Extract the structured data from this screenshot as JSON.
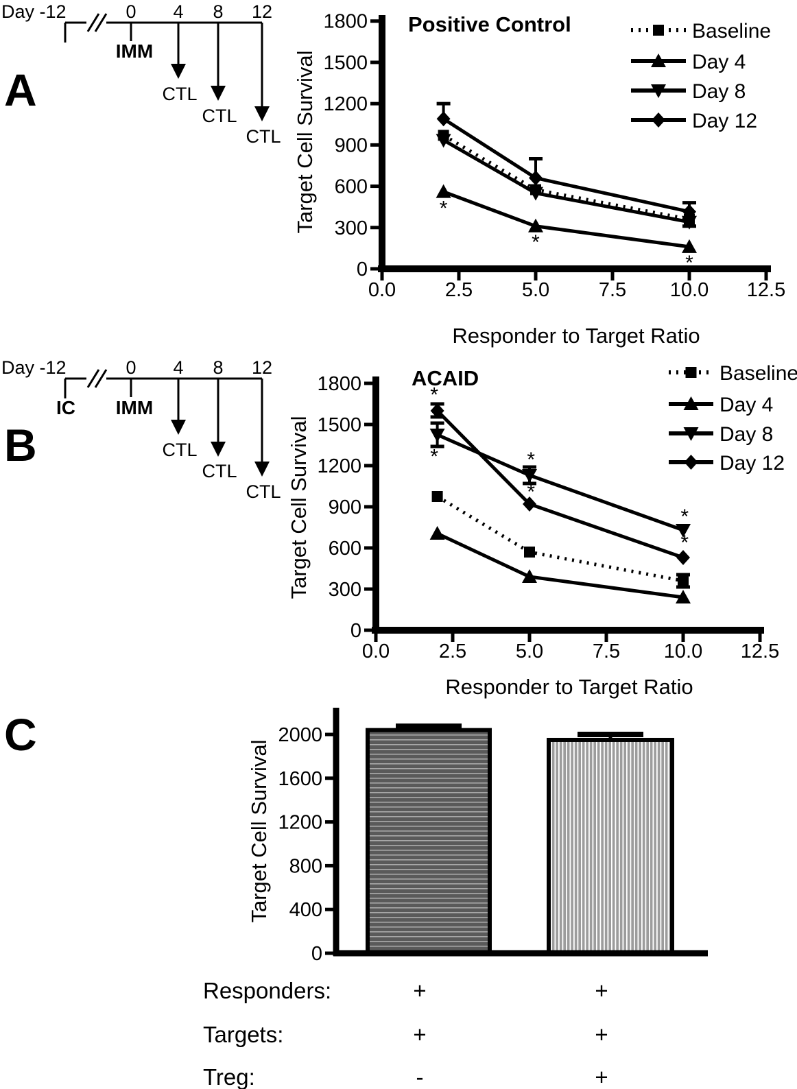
{
  "panels": {
    "a": {
      "label": "A"
    },
    "b": {
      "label": "B"
    },
    "c": {
      "label": "C"
    }
  },
  "timelines": {
    "a": {
      "start_label": "Day -12",
      "break_symbol": "//",
      "tick_labels": [
        "0",
        "4",
        "8",
        "12"
      ],
      "origin_event": "IMM",
      "start_event": "",
      "arrow_event": "CTL"
    },
    "b": {
      "start_label": "Day -12",
      "break_symbol": "//",
      "tick_labels": [
        "0",
        "4",
        "8",
        "12"
      ],
      "origin_event": "IMM",
      "start_event": "IC",
      "arrow_event": "CTL"
    }
  },
  "chart_data": [
    {
      "id": "positive-control",
      "type": "line",
      "title": "Positive Control",
      "xlabel": "Responder to Target Ratio",
      "ylabel": "Target Cell Survival",
      "xlim": [
        0,
        12.5
      ],
      "ylim": [
        0,
        1800
      ],
      "xtick_values": [
        0,
        2.5,
        5,
        7.5,
        10,
        12.5
      ],
      "xtick_labels": [
        "0.0",
        "2.5",
        "5.0",
        "7.5",
        "10.0",
        "12.5"
      ],
      "yticks": [
        0,
        300,
        600,
        900,
        1200,
        1500,
        1800
      ],
      "x": [
        2,
        5,
        10
      ],
      "sig_symbol": "*",
      "legend_position": "top-right",
      "series": [
        {
          "name": "Baseline",
          "marker": "square",
          "line": "dotted",
          "values": [
            970,
            575,
            360
          ],
          "err_up": [
            0,
            0,
            0
          ],
          "err_down": [
            0,
            0,
            50
          ]
        },
        {
          "name": "Day 4",
          "marker": "triangle-up",
          "line": "solid",
          "values": [
            560,
            310,
            160
          ],
          "err_up": [
            0,
            0,
            0
          ],
          "err_down": [
            0,
            0,
            0
          ]
        },
        {
          "name": "Day 8",
          "marker": "triangle-down",
          "line": "solid",
          "values": [
            935,
            550,
            340
          ],
          "err_up": [
            0,
            0,
            0
          ],
          "err_down": [
            0,
            0,
            0
          ]
        },
        {
          "name": "Day 12",
          "marker": "diamond",
          "line": "solid",
          "values": [
            1090,
            660,
            415
          ],
          "err_up": [
            110,
            140,
            65
          ],
          "err_down": [
            0,
            0,
            0
          ]
        }
      ],
      "sig_marks": [
        {
          "x": 2,
          "y": 445
        },
        {
          "x": 5,
          "y": 200
        },
        {
          "x": 10,
          "y": 50
        }
      ]
    },
    {
      "id": "acaid",
      "type": "line",
      "title": "ACAID",
      "xlabel": "Responder to Target Ratio",
      "ylabel": "Target Cell Survival",
      "xlim": [
        0,
        12.5
      ],
      "ylim": [
        0,
        1800
      ],
      "xtick_values": [
        0,
        2.5,
        5,
        7.5,
        10,
        12.5
      ],
      "xtick_labels": [
        "0.0",
        "2.5",
        "5.0",
        "7.5",
        "10.0",
        "12.5"
      ],
      "yticks": [
        0,
        300,
        600,
        900,
        1200,
        1500,
        1800
      ],
      "x": [
        2,
        5,
        10
      ],
      "sig_symbol": "*",
      "legend_position": "top-right",
      "series": [
        {
          "name": "Baseline",
          "marker": "square",
          "line": "dotted",
          "values": [
            975,
            570,
            360
          ],
          "err_up": [
            0,
            0,
            45
          ],
          "err_down": [
            0,
            0,
            45
          ]
        },
        {
          "name": "Day 4",
          "marker": "triangle-up",
          "line": "solid",
          "values": [
            705,
            390,
            240
          ],
          "err_up": [
            0,
            0,
            0
          ],
          "err_down": [
            0,
            0,
            0
          ]
        },
        {
          "name": "Day 8",
          "marker": "triangle-down",
          "line": "solid",
          "values": [
            1425,
            1130,
            730
          ],
          "err_up": [
            85,
            60,
            0
          ],
          "err_down": [
            85,
            60,
            0
          ]
        },
        {
          "name": "Day 12",
          "marker": "diamond",
          "line": "solid",
          "values": [
            1600,
            920,
            530
          ],
          "err_up": [
            50,
            0,
            0
          ],
          "err_down": [
            45,
            0,
            0
          ]
        }
      ],
      "sig_marks": [
        {
          "x": 1.9,
          "y": 1723
        },
        {
          "x": 1.9,
          "y": 1272
        },
        {
          "x": 5.05,
          "y": 1250
        },
        {
          "x": 5.05,
          "y": 1015
        },
        {
          "x": 10.05,
          "y": 835
        },
        {
          "x": 10.05,
          "y": 645
        }
      ]
    },
    {
      "id": "treg-suppression",
      "type": "bar",
      "ylabel": "Target Cell Survival",
      "ylim": [
        0,
        2200
      ],
      "yticks": [
        0,
        400,
        800,
        1200,
        1600,
        2000
      ],
      "bars": [
        {
          "value": 2040,
          "error_up": 35,
          "pattern": "horizontal-stripes"
        },
        {
          "value": 1950,
          "error_up": 50,
          "pattern": "vertical-stripes"
        }
      ],
      "colors": {
        "ink": "#000000",
        "bar1_fill": "#5a5a5a",
        "bar1_stripe": "#a9a9a9",
        "bar2_fill": "#9c9c9c",
        "bar2_stripe": "#ffffff"
      },
      "condition_table": {
        "rows": [
          {
            "label": "Responders:",
            "values": [
              "+",
              "+"
            ]
          },
          {
            "label": "Targets:",
            "values": [
              "+",
              "+"
            ]
          },
          {
            "label": "Treg:",
            "values": [
              "-",
              "+"
            ]
          }
        ]
      }
    }
  ]
}
